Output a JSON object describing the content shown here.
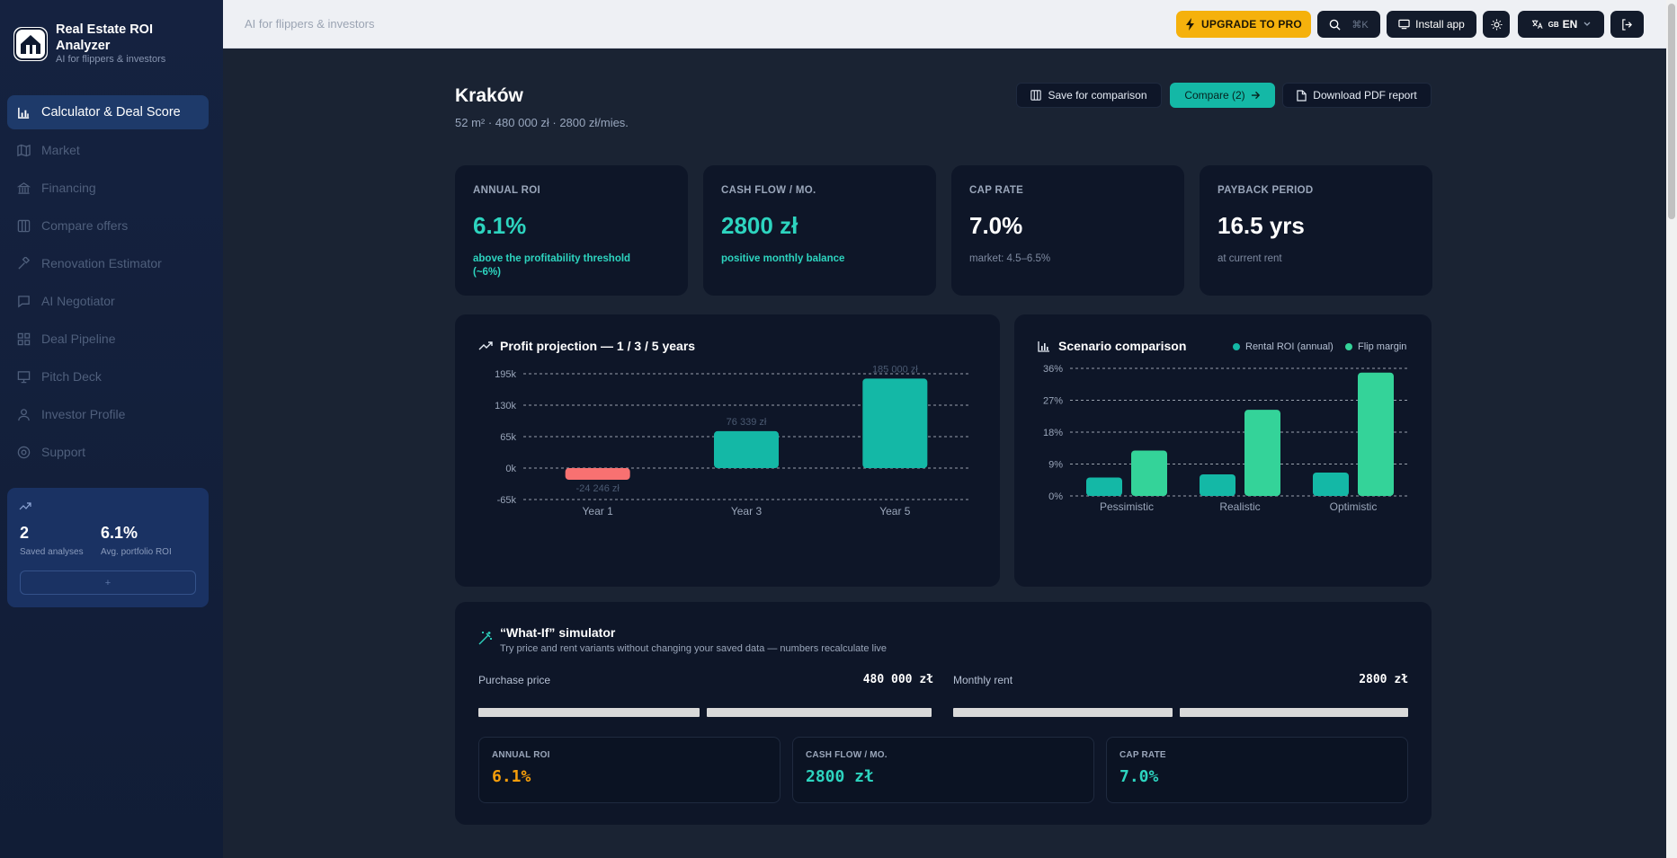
{
  "app": {
    "name": "Real Estate ROI Analyzer",
    "tagline": "AI for flippers & investors"
  },
  "sidebar": {
    "items": [
      {
        "label": "Calculator & Deal Score",
        "icon": "bar-chart-icon",
        "active": true
      },
      {
        "label": "Market",
        "icon": "map-icon"
      },
      {
        "label": "Financing",
        "icon": "bank-icon"
      },
      {
        "label": "Compare offers",
        "icon": "columns-icon"
      },
      {
        "label": "Renovation Estimator",
        "icon": "hammer-icon"
      },
      {
        "label": "AI Negotiator",
        "icon": "chat-icon"
      },
      {
        "label": "Deal Pipeline",
        "icon": "grid-icon"
      },
      {
        "label": "Pitch Deck",
        "icon": "presentation-icon"
      },
      {
        "label": "Investor Profile",
        "icon": "user-icon"
      },
      {
        "label": "Support",
        "icon": "lifebuoy-icon"
      }
    ],
    "stats": {
      "saved_value": "2",
      "saved_label": "Saved analyses",
      "roi_value": "6.1%",
      "roi_label": "Avg. portfolio ROI",
      "button_label": "+"
    }
  },
  "topbar": {
    "tagline": "AI for flippers & investors",
    "upgrade": "UPGRADE TO PRO",
    "search_shortcut": "⌘K",
    "install": "Install app",
    "lang_flag": "GB",
    "lang": "EN"
  },
  "page": {
    "title": "Kraków",
    "subtitle": "52 m² · 480 000 zł · 2800 zł/mies.",
    "save_button": "Save for comparison",
    "compare_button": "Compare (2)",
    "pdf_button": "Download PDF report"
  },
  "kpis": [
    {
      "label": "ANNUAL ROI",
      "value": "6.1%",
      "note": "above the profitability threshold (~6%)"
    },
    {
      "label": "CASH FLOW / MO.",
      "value": "2800 zł",
      "note": "positive monthly balance"
    },
    {
      "label": "CAP RATE",
      "value": "7.0%",
      "note": "market: 4.5–6.5%"
    },
    {
      "label": "PAYBACK PERIOD",
      "value": "16.5 yrs",
      "note": "at current rent"
    }
  ],
  "profit_chart": {
    "title": "Profit projection — 1 / 3 / 5 years"
  },
  "scenario_chart": {
    "title": "Scenario comparison"
  },
  "chart_data": [
    {
      "type": "bar",
      "title": "Profit projection — 1 / 3 / 5 years",
      "categories": [
        "Year 1",
        "Year 3",
        "Year 5"
      ],
      "values": [
        -24246,
        76339,
        185000
      ],
      "data_labels": [
        "-24 246 zł",
        "76 339 zł",
        "185 000 zł"
      ],
      "y_ticks": [
        "195k",
        "130k",
        "65k",
        "0k",
        "-65k"
      ],
      "ylim": [
        -65000,
        195000
      ],
      "colors": [
        "#f87171",
        "#14b8a6",
        "#14b8a6"
      ],
      "grid": true
    },
    {
      "type": "bar",
      "title": "Scenario comparison",
      "categories": [
        "Pessimistic",
        "Realistic",
        "Optimistic"
      ],
      "series": [
        {
          "name": "Rental ROI (annual)",
          "values": [
            5.2,
            6.1,
            6.6
          ],
          "color": "#14b8a6"
        },
        {
          "name": "Flip margin",
          "values": [
            12.8,
            24.3,
            34.8
          ],
          "color": "#34d399"
        }
      ],
      "y_ticks": [
        "36%",
        "27%",
        "18%",
        "9%",
        "0%"
      ],
      "ylim": [
        0,
        36
      ],
      "legend": "top-right",
      "grid": true
    }
  ],
  "simulator": {
    "title": "“What-If” simulator",
    "subtitle": "Try price and rent variants without changing your saved data — numbers recalculate live",
    "price_label": "Purchase price",
    "price_value": "480 000 zł",
    "rent_label": "Monthly rent",
    "rent_value": "2800 zł",
    "results": [
      {
        "label": "ANNUAL ROI",
        "value": "6.1%"
      },
      {
        "label": "CASH FLOW / MO.",
        "value": "2800 zł"
      },
      {
        "label": "CAP RATE",
        "value": "7.0%"
      }
    ]
  }
}
